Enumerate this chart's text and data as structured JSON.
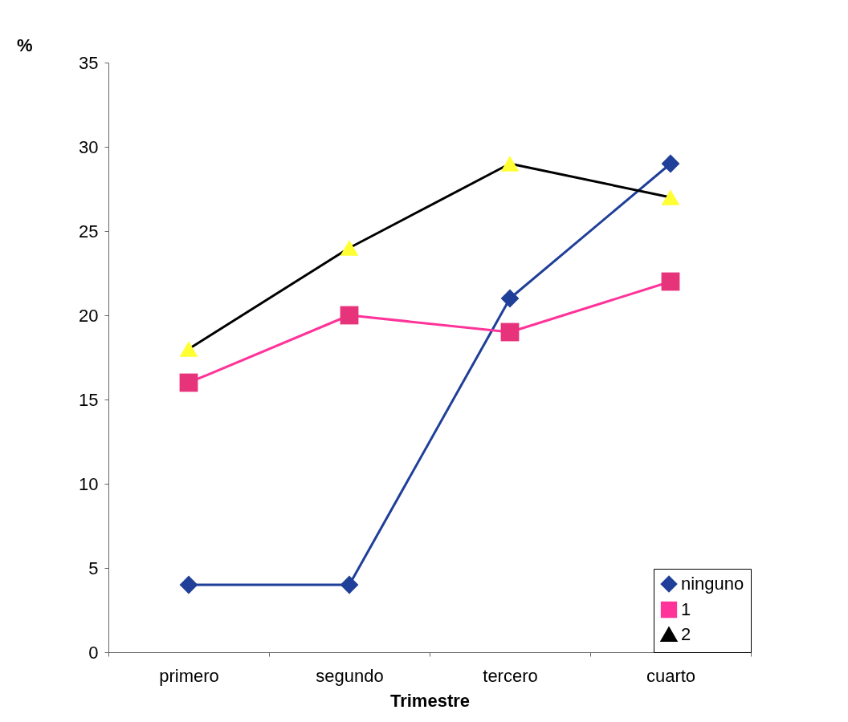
{
  "chart_data": {
    "type": "line",
    "xlabel": "Trimestre",
    "ylabel": "%",
    "categories": [
      "primero",
      "segundo",
      "tercero",
      "cuarto"
    ],
    "ylim": [
      0,
      35
    ],
    "yticks": [
      0,
      5,
      10,
      15,
      20,
      25,
      30,
      35
    ],
    "legend": "bottom right",
    "line_style": "solid",
    "series": [
      {
        "name": "ninguno",
        "color": "#1f3f99",
        "marker": "diamond",
        "values": [
          4,
          4,
          21,
          29
        ]
      },
      {
        "name": "1",
        "color": "#ff3399",
        "marker": "square",
        "colors": [
          "#e6337a",
          "#e6337a",
          "#e6337a",
          "#e6337a"
        ],
        "values": [
          16,
          20,
          19,
          22
        ]
      },
      {
        "name": "2",
        "color": "#000000",
        "marker": "triangle",
        "colors": [
          "#ffff33",
          "#ffff33",
          "#ffff33",
          "#ffff33"
        ],
        "values": [
          18,
          24,
          29,
          27
        ]
      }
    ]
  }
}
